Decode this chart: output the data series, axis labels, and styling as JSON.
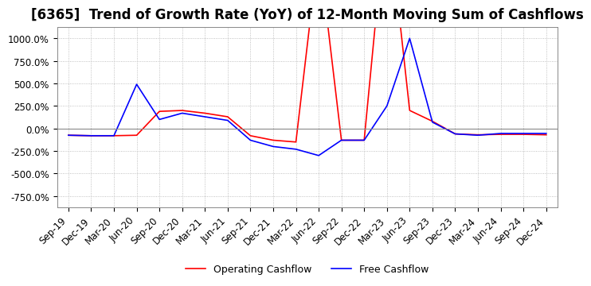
{
  "title": "[6365]  Trend of Growth Rate (YoY) of 12-Month Moving Sum of Cashflows",
  "ylim": [
    -875,
    1125
  ],
  "yticks": [
    -750,
    -500,
    -250,
    0,
    250,
    500,
    750,
    1000
  ],
  "x_labels": [
    "Sep-19",
    "Dec-19",
    "Mar-20",
    "Jun-20",
    "Sep-20",
    "Dec-20",
    "Mar-21",
    "Jun-21",
    "Sep-21",
    "Dec-21",
    "Mar-22",
    "Jun-22",
    "Sep-22",
    "Dec-22",
    "Mar-23",
    "Jun-23",
    "Sep-23",
    "Dec-23",
    "Mar-24",
    "Jun-24",
    "Sep-24",
    "Dec-24"
  ],
  "operating_cashflow": [
    -75,
    -80,
    -80,
    -75,
    190,
    200,
    170,
    130,
    -80,
    -130,
    -150,
    2000,
    -130,
    -130,
    2500,
    200,
    80,
    -60,
    -70,
    -65,
    -65,
    -70
  ],
  "free_cashflow": [
    -75,
    -80,
    -80,
    490,
    100,
    170,
    130,
    90,
    -130,
    -200,
    -230,
    -300,
    -130,
    -130,
    250,
    1000,
    70,
    -60,
    -75,
    -55,
    -55,
    -55
  ],
  "operating_color": "#ff0000",
  "free_color": "#0000ff",
  "legend_labels": [
    "Operating Cashflow",
    "Free Cashflow"
  ],
  "background_color": "#ffffff",
  "grid_color": "#b0b0b0",
  "title_fontsize": 12,
  "tick_fontsize": 8.5
}
